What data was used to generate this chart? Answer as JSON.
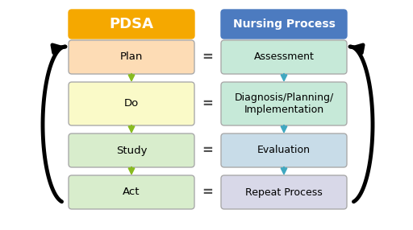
{
  "title_pdsa": "PDSA",
  "title_nursing": "Nursing Process",
  "pdsa_header_color": "#F5A800",
  "nursing_header_color": "#4C7BC0",
  "header_text_color": "#FFFFFF",
  "left_boxes": [
    "Plan",
    "Do",
    "Study",
    "Act"
  ],
  "right_boxes": [
    "Assessment",
    "Diagnosis/Planning/\nImplementation",
    "Evaluation",
    "Repeat Process"
  ],
  "left_box_colors": [
    "#FDDCB5",
    "#FAFAC8",
    "#D8EDCC",
    "#D8EDCC"
  ],
  "right_box_colors": [
    "#C6E9D8",
    "#C6E9D8",
    "#C8DCE8",
    "#D8D8E8"
  ],
  "left_arrow_color": "#88BB20",
  "right_arrow_color": "#40A8C0",
  "bg_color": "#FFFFFF",
  "box_edge_color": "#AAAAAA"
}
